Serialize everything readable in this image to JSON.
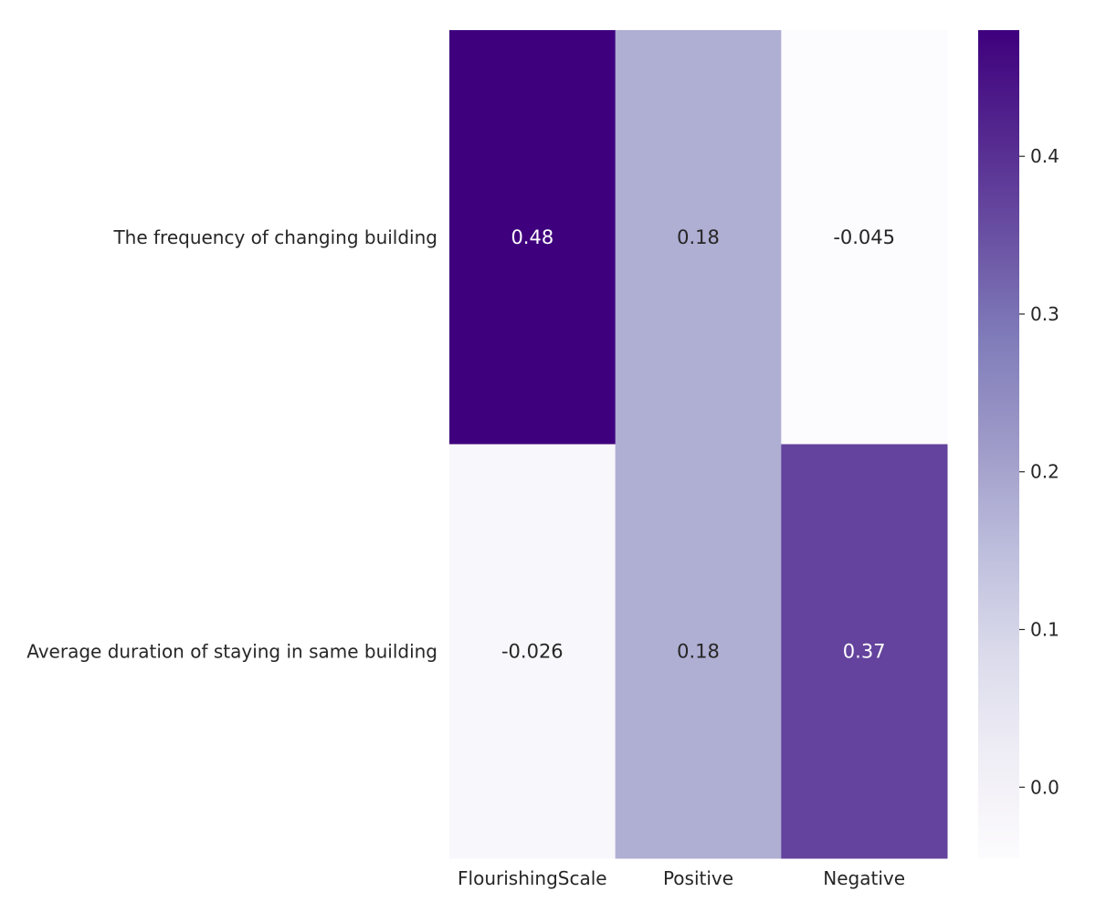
{
  "chart_data": {
    "type": "heatmap",
    "title": "",
    "xlabel": "",
    "ylabel": "",
    "columns": [
      "FlourishingScale",
      "Positive",
      "Negative"
    ],
    "rows": [
      "The frequency of changing building",
      "Average duration of staying in same building"
    ],
    "values": [
      [
        0.48,
        0.18,
        -0.045
      ],
      [
        -0.026,
        0.18,
        0.37
      ]
    ],
    "annotations": [
      [
        "0.48",
        "0.18",
        "-0.045"
      ],
      [
        "-0.026",
        "0.18",
        "0.37"
      ]
    ],
    "colormap": "Purples",
    "colormap_stops": [
      "#fcfbfd",
      "#efedf5",
      "#dadaeb",
      "#bcbddc",
      "#9e9ac8",
      "#807dba",
      "#6a51a3",
      "#54278f",
      "#3f007d"
    ],
    "color_range": [
      -0.045,
      0.48
    ],
    "colorbar": {
      "ticks": [
        0.0,
        0.1,
        0.2,
        0.3,
        0.4
      ],
      "tick_labels": [
        "0.0",
        "0.1",
        "0.2",
        "0.3",
        "0.4"
      ]
    },
    "grid": false
  }
}
